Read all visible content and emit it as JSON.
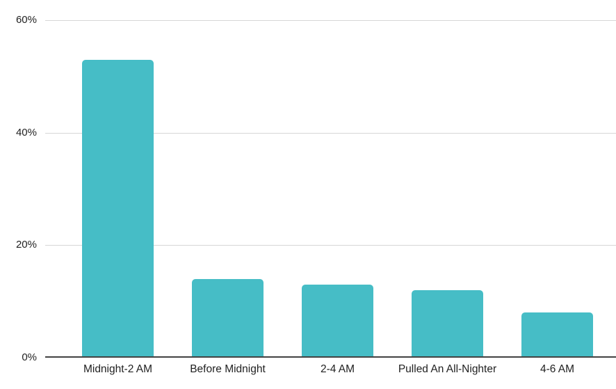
{
  "chart_data": {
    "type": "bar",
    "title": "",
    "xlabel": "",
    "ylabel": "",
    "categories": [
      "Midnight-2 AM",
      "Before Midnight",
      "2-4 AM",
      "Pulled An All-Nighter",
      "4-6 AM"
    ],
    "values": [
      53,
      14,
      13,
      12,
      8
    ],
    "value_unit": "%",
    "ylim": [
      0,
      60
    ],
    "yticks": [
      0,
      20,
      40,
      60
    ],
    "ytick_labels": [
      "0%",
      "20%",
      "40%",
      "60%"
    ],
    "grid": true,
    "legend": "none",
    "colors": {
      "bar": "#46BDC6",
      "gridline": "#d6d6d6",
      "axis_line": "#424242",
      "tick_text": "#1f1f1f",
      "background": "#ffffff"
    }
  }
}
